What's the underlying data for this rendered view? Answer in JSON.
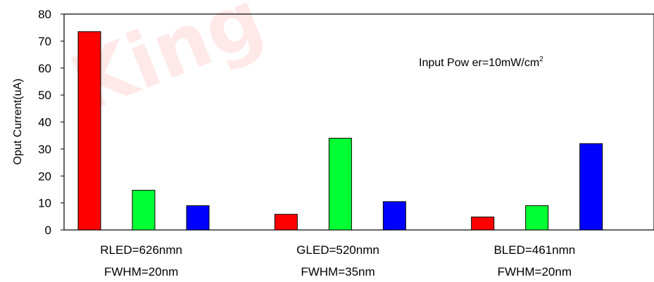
{
  "chart_data": {
    "type": "bar",
    "title": "",
    "xlabel": "",
    "ylabel": "Oput Current(uA)",
    "ylim": [
      0,
      80
    ],
    "yticks": [
      0,
      10,
      20,
      30,
      40,
      50,
      60,
      70,
      80
    ],
    "grid": false,
    "legend": "none",
    "annotation": "Input Pow er=10mW/cm",
    "annotation_superscript": "2",
    "watermark": "King",
    "categories": [
      {
        "line1": "RLED=626nmn",
        "line2": "FWHM=20nm"
      },
      {
        "line1": "GLED=520nmn",
        "line2": "FWHM=35nm"
      },
      {
        "line1": "BLED=461nmn",
        "line2": "FWHM=20nm"
      }
    ],
    "series": [
      {
        "color": "#ff0000",
        "values": [
          73.5,
          5.8,
          4.8
        ]
      },
      {
        "color": "#00ff33",
        "values": [
          14.7,
          34.0,
          9.0
        ]
      },
      {
        "color": "#0000ff",
        "values": [
          9.0,
          10.5,
          32.0
        ]
      }
    ]
  }
}
